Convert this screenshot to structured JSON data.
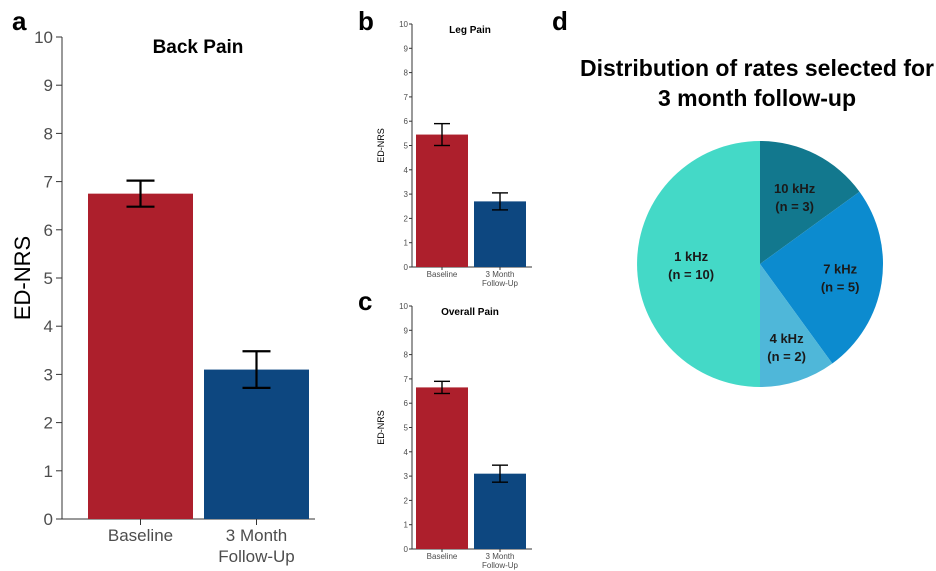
{
  "panel_labels": {
    "a": "a",
    "b": "b",
    "c": "c",
    "d": "d"
  },
  "colors": {
    "baseline": "#AD1F2C",
    "followup": "#0D4780",
    "axis": "#333333"
  },
  "chart_data": [
    {
      "type": "bar",
      "panel": "a",
      "title": "Back Pain",
      "ylabel": "ED-NRS",
      "categories": [
        "Baseline",
        "3 Month Follow-Up"
      ],
      "category_lines": [
        [
          "Baseline"
        ],
        [
          "3 Month",
          "Follow-Up"
        ]
      ],
      "values": [
        6.75,
        3.1
      ],
      "error_low": [
        6.48,
        2.72
      ],
      "error_high": [
        7.02,
        3.48
      ],
      "ylim": [
        0,
        10
      ],
      "yticks": [
        "0",
        "1",
        "2",
        "3",
        "4",
        "5",
        "6",
        "7",
        "8",
        "9",
        "10"
      ]
    },
    {
      "type": "bar",
      "panel": "b",
      "title": "Leg Pain",
      "ylabel": "ED-NRS",
      "categories": [
        "Baseline",
        "3 Month Follow-Up"
      ],
      "category_lines": [
        [
          "Baseline"
        ],
        [
          "3 Month",
          "Follow-Up"
        ]
      ],
      "values": [
        5.45,
        2.7
      ],
      "error_low": [
        5.0,
        2.35
      ],
      "error_high": [
        5.9,
        3.05
      ],
      "ylim": [
        0,
        10
      ],
      "yticks": [
        "0",
        "1",
        "2",
        "3",
        "4",
        "5",
        "6",
        "7",
        "8",
        "9",
        "10"
      ]
    },
    {
      "type": "bar",
      "panel": "c",
      "title": "Overall Pain",
      "ylabel": "ED-NRS",
      "categories": [
        "Baseline",
        "3 Month Follow-Up"
      ],
      "category_lines": [
        [
          "Baseline"
        ],
        [
          "3 Month",
          "Follow-Up"
        ]
      ],
      "values": [
        6.65,
        3.1
      ],
      "error_low": [
        6.4,
        2.75
      ],
      "error_high": [
        6.9,
        3.45
      ],
      "ylim": [
        0,
        10
      ],
      "yticks": [
        "0",
        "1",
        "2",
        "3",
        "4",
        "5",
        "6",
        "7",
        "8",
        "9",
        "10"
      ]
    },
    {
      "type": "pie",
      "panel": "d",
      "title": "Distribution of rates selected for 3 month follow-up",
      "title_lines": [
        "Distribution of rates selected for",
        "3 month follow-up"
      ],
      "slices": [
        {
          "label": "10 kHz",
          "count_label": "(n = 3)",
          "value": 3,
          "color": "#12788E"
        },
        {
          "label": "7 kHz",
          "count_label": "(n = 5)",
          "value": 5,
          "color": "#0C8BCF"
        },
        {
          "label": "4 kHz",
          "count_label": "(n = 2)",
          "value": 2,
          "color": "#4FB7D9"
        },
        {
          "label": "1 kHz",
          "count_label": "(n = 10)",
          "value": 10,
          "color": "#44D9C7"
        }
      ]
    }
  ]
}
